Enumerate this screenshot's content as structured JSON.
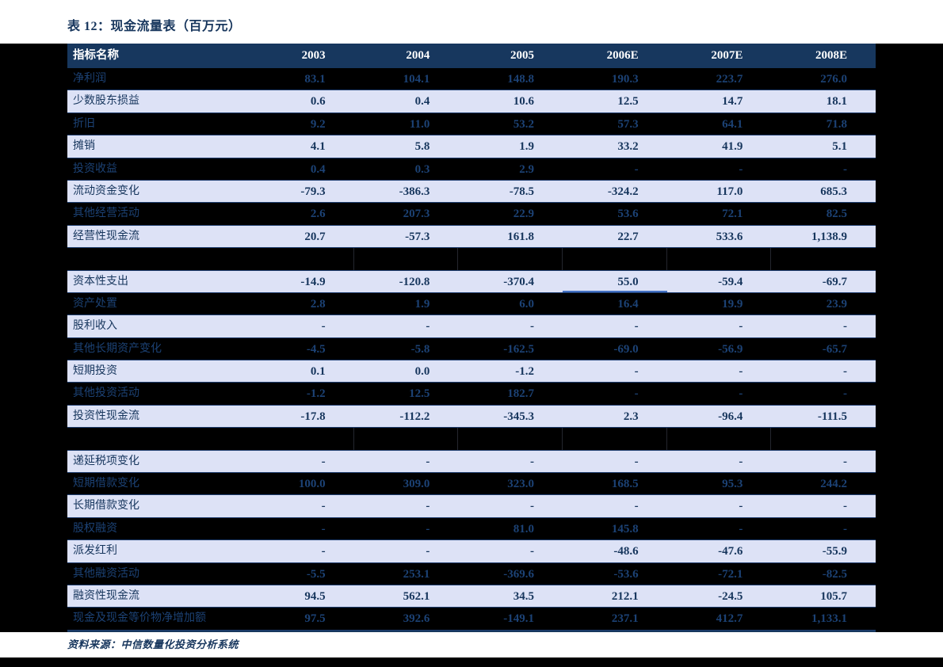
{
  "page": {
    "title": "表 12：现金流量表（百万元）",
    "source_note": "资料来源：中信数量化投资分析系统"
  },
  "colors": {
    "title_text": "#17365D",
    "header_bg": "#17375E",
    "header_text": "#FFFFFF",
    "dark_row_bg": "#000000",
    "light_row_bg": "#DDE2F6",
    "text_on_dark": "#1C4275",
    "text_on_light": "#17365D",
    "cell_underline_accent": "#4472C4",
    "table_bottom_rule": "#17375E"
  },
  "chart_data": {
    "type": "table",
    "title": "表 12：现金流量表（百万元）",
    "columns": [
      "指标名称",
      "2003",
      "2004",
      "2005",
      "2006E",
      "2007E",
      "2008E"
    ],
    "rows": [
      {
        "label": "净利润",
        "values": [
          "83.1",
          "104.1",
          "148.8",
          "190.3",
          "223.7",
          "276.0"
        ]
      },
      {
        "label": "少数股东损益",
        "values": [
          "0.6",
          "0.4",
          "10.6",
          "12.5",
          "14.7",
          "18.1"
        ]
      },
      {
        "label": "折旧",
        "values": [
          "9.2",
          "11.0",
          "53.2",
          "57.3",
          "64.1",
          "71.8"
        ]
      },
      {
        "label": "摊销",
        "values": [
          "4.1",
          "5.8",
          "1.9",
          "33.2",
          "41.9",
          "5.1"
        ]
      },
      {
        "label": "投资收益",
        "values": [
          "0.4",
          "0.3",
          "2.9",
          "-",
          "-",
          "-"
        ]
      },
      {
        "label": "流动资金变化",
        "values": [
          "-79.3",
          "-386.3",
          "-78.5",
          "-324.2",
          "117.0",
          "685.3"
        ]
      },
      {
        "label": "其他经营活动",
        "values": [
          "2.6",
          "207.3",
          "22.9",
          "53.6",
          "72.1",
          "82.5"
        ]
      },
      {
        "label": "经营性现金流",
        "values": [
          "20.7",
          "-57.3",
          "161.8",
          "22.7",
          "533.6",
          "1,138.9"
        ]
      },
      {
        "label": "",
        "values": [
          "",
          "",
          "",
          "",
          "",
          ""
        ]
      },
      {
        "label": "资本性支出",
        "values": [
          "-14.9",
          "-120.8",
          "-370.4",
          "55.0",
          "-59.4",
          "-69.7"
        ]
      },
      {
        "label": "资产处置",
        "values": [
          "2.8",
          "1.9",
          "6.0",
          "16.4",
          "19.9",
          "23.9"
        ]
      },
      {
        "label": "股利收入",
        "values": [
          "-",
          "-",
          "-",
          "-",
          "-",
          "-"
        ]
      },
      {
        "label": "其他长期资产变化",
        "values": [
          "-4.5",
          "-5.8",
          "-162.5",
          "-69.0",
          "-56.9",
          "-65.7"
        ]
      },
      {
        "label": "短期投资",
        "values": [
          "0.1",
          "0.0",
          "-1.2",
          "-",
          "-",
          "-"
        ]
      },
      {
        "label": "其他投资活动",
        "values": [
          "-1.2",
          "12.5",
          "182.7",
          "-",
          "-",
          "-"
        ]
      },
      {
        "label": "投资性现金流",
        "values": [
          "-17.8",
          "-112.2",
          "-345.3",
          "2.3",
          "-96.4",
          "-111.5"
        ]
      },
      {
        "label": "",
        "values": [
          "",
          "",
          "",
          "",
          "",
          ""
        ]
      },
      {
        "label": "递延税项变化",
        "values": [
          "-",
          "-",
          "-",
          "-",
          "-",
          "-"
        ]
      },
      {
        "label": "短期借款变化",
        "values": [
          "100.0",
          "309.0",
          "323.0",
          "168.5",
          "95.3",
          "244.2"
        ]
      },
      {
        "label": "长期借款变化",
        "values": [
          "-",
          "-",
          "-",
          "-",
          "-",
          "-"
        ]
      },
      {
        "label": "股权融资",
        "values": [
          "-",
          "-",
          "81.0",
          "145.8",
          "-",
          "-"
        ]
      },
      {
        "label": "派发红利",
        "values": [
          "-",
          "-",
          "-",
          "-48.6",
          "-47.6",
          "-55.9"
        ]
      },
      {
        "label": "其他融资活动",
        "values": [
          "-5.5",
          "253.1",
          "-369.6",
          "-53.6",
          "-72.1",
          "-82.5"
        ]
      },
      {
        "label": "融资性现金流",
        "values": [
          "94.5",
          "562.1",
          "34.5",
          "212.1",
          "-24.5",
          "105.7"
        ]
      },
      {
        "label": "现金及现金等价物净增加额",
        "values": [
          "97.5",
          "392.6",
          "-149.1",
          "237.1",
          "412.7",
          "1,133.1"
        ]
      }
    ],
    "underline_cell": {
      "row_index": 9,
      "col_index": 3
    },
    "source": "资料来源：中信数量化投资分析系统"
  }
}
